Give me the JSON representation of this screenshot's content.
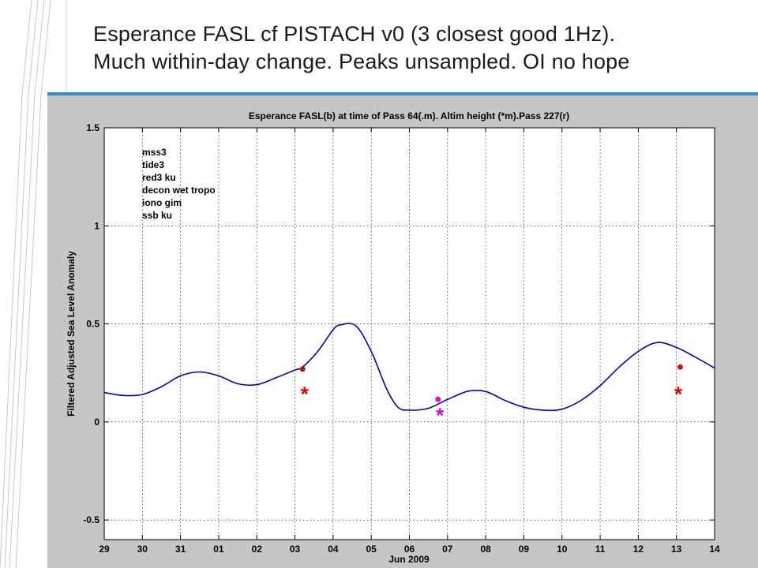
{
  "slide": {
    "title_line1": "Esperance FASL cf PISTACH v0 (3 closest good 1Hz).",
    "title_line2": "Much within-day change. Peaks unsampled. OI no hope"
  },
  "colors": {
    "accent_bar": "#2e8fd0",
    "figure_bg": "#c6c6c6",
    "series_line": "#0000cc",
    "pass64": "#e00000",
    "pass227": "#e000e0"
  },
  "chart_data": {
    "type": "line",
    "title": "Esperance FASL(b) at time of Pass 64(.m). Altim height (*m).Pass 227(r)",
    "xlabel": "Jun 2009",
    "ylabel": "Filtered Adjusted Sea Level Anomaly",
    "xlim": [
      0,
      16
    ],
    "ylim": [
      -0.6,
      1.5
    ],
    "grid": true,
    "x_ticks": [
      0,
      1,
      2,
      3,
      4,
      5,
      6,
      7,
      8,
      9,
      10,
      11,
      12,
      13,
      14,
      15,
      16
    ],
    "x_tick_labels": [
      "29",
      "30",
      "31",
      "01",
      "02",
      "03",
      "04",
      "05",
      "06",
      "07",
      "08",
      "09",
      "10",
      "11",
      "12",
      "13",
      "14"
    ],
    "y_ticks": [
      -0.5,
      0,
      0.5,
      1,
      1.5
    ],
    "y_tick_labels": [
      "-0.5",
      "0",
      "0.5",
      "1",
      "1.5"
    ],
    "legend_placement": "top-left",
    "legend": [
      "mss3",
      "tide3",
      "red3 ku",
      "decon wet tropo",
      "iono gim",
      "ssb ku"
    ],
    "series": [
      {
        "x": [
          0,
          0.5,
          1,
          1.5,
          2,
          2.5,
          3,
          3.5,
          4,
          4.5,
          5,
          5.2,
          5.6,
          6,
          6.2,
          6.6,
          7,
          7.4,
          7.7,
          8,
          8.5,
          9,
          9.5,
          9.8,
          10,
          10.2,
          10.5,
          11,
          11.5,
          12,
          12.5,
          13,
          13.5,
          14,
          14.5,
          15,
          15.5,
          16
        ],
        "y": [
          0.15,
          0.135,
          0.14,
          0.18,
          0.235,
          0.255,
          0.235,
          0.195,
          0.19,
          0.225,
          0.265,
          0.28,
          0.36,
          0.47,
          0.495,
          0.49,
          0.36,
          0.17,
          0.075,
          0.06,
          0.07,
          0.115,
          0.155,
          0.16,
          0.155,
          0.14,
          0.11,
          0.075,
          0.06,
          0.065,
          0.11,
          0.185,
          0.28,
          0.36,
          0.405,
          0.38,
          0.33,
          0.275
        ]
      }
    ],
    "pass64_points": [
      {
        "x": 5.2,
        "y": 0.27
      },
      {
        "x": 8.75,
        "y": 0.115
      },
      {
        "x": 15.1,
        "y": 0.28
      }
    ],
    "altim_points": [
      {
        "x": 5.25,
        "y": 0.155
      },
      {
        "x": 8.8,
        "y": 0.045
      },
      {
        "x": 15.05,
        "y": 0.155
      }
    ]
  }
}
